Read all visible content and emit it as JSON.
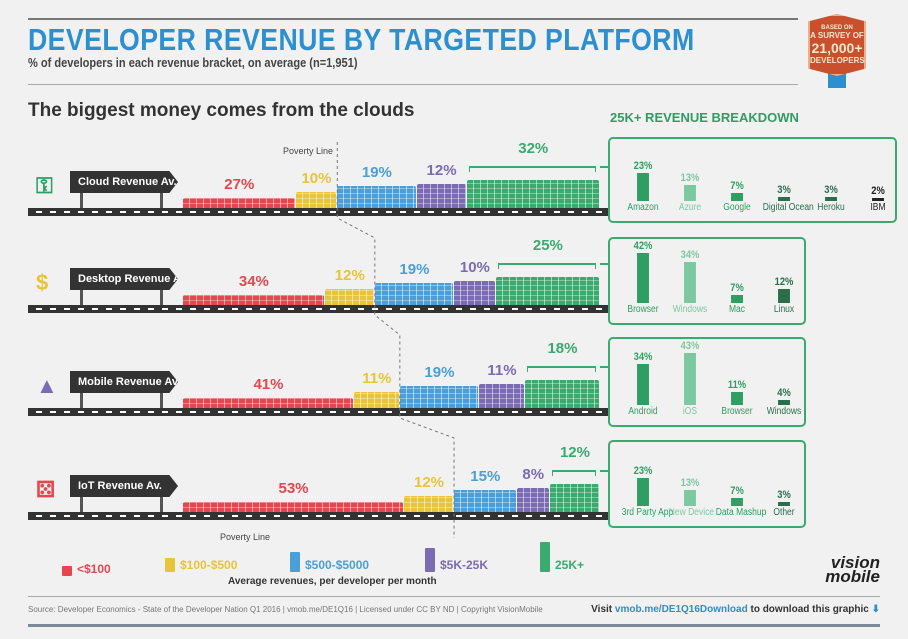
{
  "header": {
    "title": "DEVELOPER REVENUE BY TARGETED PLATFORM",
    "subtitle": "% of developers in each revenue bracket, on average (n=1,951)",
    "badge": {
      "line1": "BASED ON",
      "line2": "A SURVEY OF",
      "line3": "21,000+",
      "line4": "DEVELOPERS"
    }
  },
  "heading": "The biggest money comes from the clouds",
  "poverty_label": "Poverty Line",
  "colors": {
    "<$100": "#e5474f",
    "$100-$500": "#e8c43a",
    "$500-$5000": "#4a9fd8",
    "$5K-25K": "#7b6bb3",
    "25K+": "#3aaa6e"
  },
  "chart_data": [
    {
      "type": "bar",
      "stacked": true,
      "orientation": "horizontal",
      "title": "",
      "categories": [
        "Cloud Revenue Av.",
        "Desktop Revenue Av.",
        "Mobile Revenue Av.",
        "IoT Revenue Av."
      ],
      "series": [
        {
          "name": "<$100",
          "values": [
            27,
            34,
            41,
            53
          ]
        },
        {
          "name": "$100-$500",
          "values": [
            10,
            12,
            11,
            12
          ]
        },
        {
          "name": "$500-$5000",
          "values": [
            19,
            19,
            19,
            15
          ]
        },
        {
          "name": "$5K-25K",
          "values": [
            12,
            10,
            11,
            8
          ]
        },
        {
          "name": "25K+",
          "values": [
            32,
            25,
            18,
            12
          ]
        }
      ],
      "xlabel": "Average revenues, per developer per month",
      "unit": "%"
    },
    {
      "type": "bar",
      "title": "25K+ REVENUE BREAKDOWN",
      "panels": [
        {
          "platform": "Cloud",
          "categories": [
            "Amazon",
            "Azure",
            "Google",
            "Digital Ocean",
            "Heroku",
            "IBM"
          ],
          "values": [
            23,
            13,
            7,
            3,
            3,
            2
          ]
        },
        {
          "platform": "Desktop",
          "categories": [
            "Browser",
            "Windows",
            "Mac",
            "Linux"
          ],
          "values": [
            42,
            34,
            7,
            12
          ]
        },
        {
          "platform": "Mobile",
          "categories": [
            "Android",
            "iOS",
            "Browser",
            "Windows"
          ],
          "values": [
            34,
            43,
            11,
            4
          ]
        },
        {
          "platform": "IoT",
          "categories": [
            "3rd Party App",
            "New Device",
            "Data Mashup",
            "Other"
          ],
          "values": [
            23,
            13,
            7,
            3
          ]
        }
      ]
    }
  ],
  "icons": [
    "key-icon",
    "money-icon",
    "hat-icon",
    "dice-icon"
  ],
  "legend": [
    "<$100",
    "$100-$500",
    "$500-$5000",
    "$5K-25K",
    "25K+"
  ],
  "footer": {
    "source": "Source: Developer Economics - State of the Developer Nation Q1 2016 | vmob.me/DE1Q16 | Licensed under CC BY ND | Copyright VisionMobile",
    "visit": "Visit",
    "link": "vmob.me/DE1Q16Download",
    "suffix": "to download this graphic",
    "logo": "vision mobile"
  }
}
